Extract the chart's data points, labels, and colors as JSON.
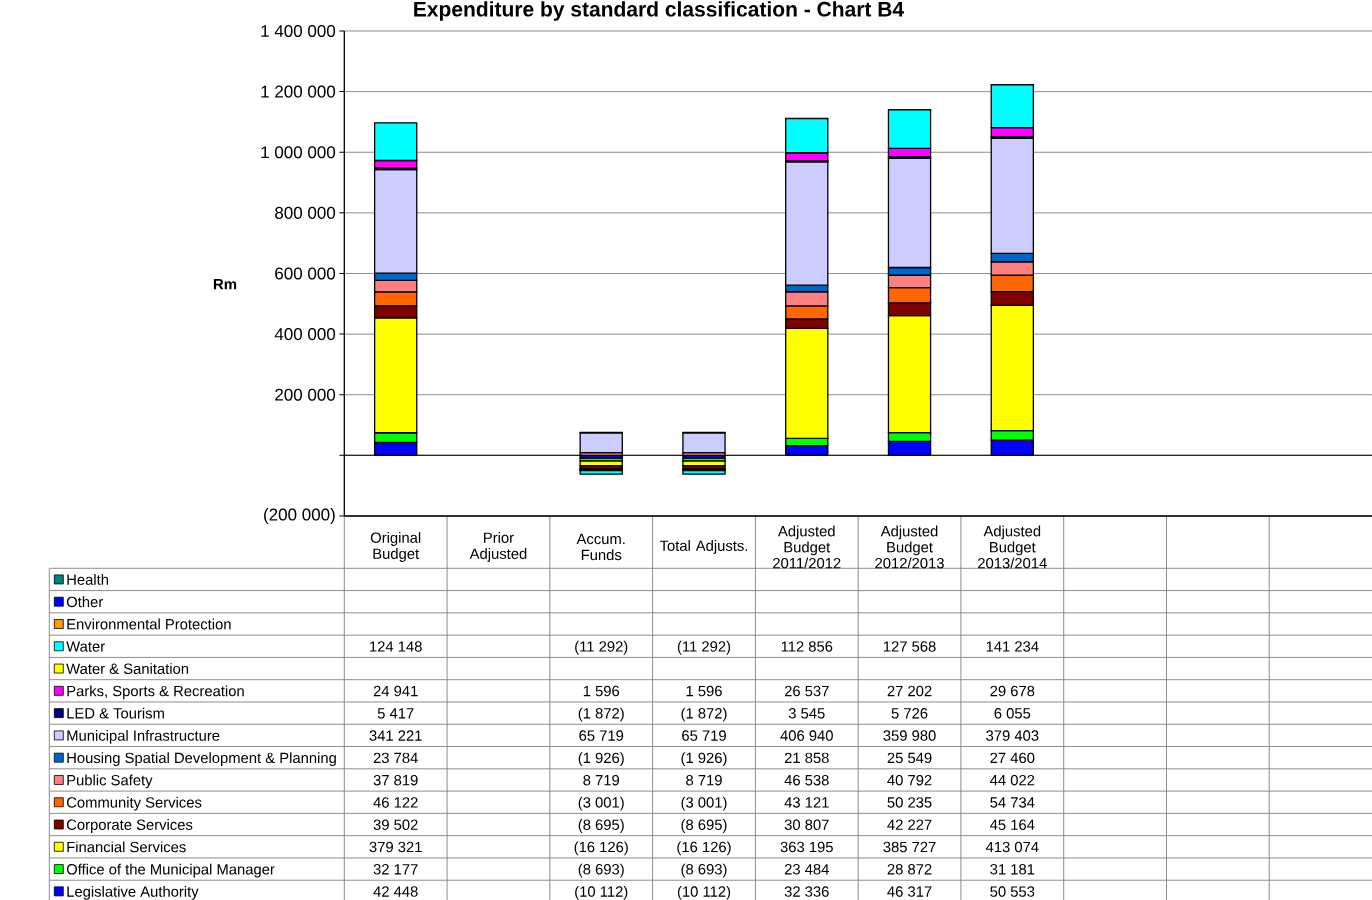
{
  "chart_data": {
    "type": "bar",
    "title": "Expenditure by standard classification - Chart B4",
    "ylabel": "Rm",
    "categories": [
      "Original Budget",
      "Prior Adjusted",
      "Accum. Funds",
      "Total Adjusts.",
      "Adjusted Budget 2011/2012",
      "Adjusted Budget 2012/2013",
      "Adjusted Budget 2013/2014",
      null,
      null,
      null
    ],
    "stacked": true,
    "grid": "y",
    "legend": "bottom left",
    "ylim": [
      -200000,
      1400000
    ],
    "yticks": [
      {
        "value": -200000,
        "label": "(200 000)"
      },
      {
        "value": 0,
        "label": null
      },
      {
        "value": 200000,
        "label": "200 000"
      },
      {
        "value": 400000,
        "label": "400 000"
      },
      {
        "value": 600000,
        "label": "600 000"
      },
      {
        "value": 800000,
        "label": "800 000"
      },
      {
        "value": 1000000,
        "label": "1 000 000"
      },
      {
        "value": 1200000,
        "label": "1 200 000"
      },
      {
        "value": 1400000,
        "label": "1 400 000"
      }
    ],
    "series": [
      {
        "name": "Legislative Authority",
        "color": "#0000ff",
        "values": [
          42448,
          null,
          -10112,
          -10112,
          32336,
          46317,
          50553,
          null,
          null,
          null
        ],
        "value_labels": [
          "42 448",
          null,
          "(10 112)",
          "(10 112)",
          "32 336",
          "46 317",
          "50 553",
          null,
          null,
          null
        ]
      },
      {
        "name": "Office of the Municipal Manager",
        "color": "#00ff00",
        "values": [
          32177,
          null,
          -8693,
          -8693,
          23484,
          28872,
          31181,
          null,
          null,
          null
        ],
        "value_labels": [
          "32 177",
          null,
          "(8 693)",
          "(8 693)",
          "23 484",
          "28 872",
          "31 181",
          null,
          null,
          null
        ]
      },
      {
        "name": "Financial Services",
        "color": "#ffff00",
        "values": [
          379321,
          null,
          -16126,
          -16126,
          363195,
          385727,
          413074,
          null,
          null,
          null
        ],
        "value_labels": [
          "379 321",
          null,
          "(16 126)",
          "(16 126)",
          "363 195",
          "385 727",
          "413 074",
          null,
          null,
          null
        ]
      },
      {
        "name": "Corporate Services",
        "color": "#800000",
        "values": [
          39502,
          null,
          -8695,
          -8695,
          30807,
          42227,
          45164,
          null,
          null,
          null
        ],
        "value_labels": [
          "39 502",
          null,
          "(8 695)",
          "(8 695)",
          "30 807",
          "42 227",
          "45 164",
          null,
          null,
          null
        ]
      },
      {
        "name": "Community Services",
        "color": "#ff6600",
        "values": [
          46122,
          null,
          -3001,
          -3001,
          43121,
          50235,
          54734,
          null,
          null,
          null
        ],
        "value_labels": [
          "46 122",
          null,
          "(3 001)",
          "(3 001)",
          "43 121",
          "50 235",
          "54 734",
          null,
          null,
          null
        ]
      },
      {
        "name": "Public Safety",
        "color": "#ff8080",
        "values": [
          37819,
          null,
          8719,
          8719,
          46538,
          40792,
          44022,
          null,
          null,
          null
        ],
        "value_labels": [
          "37 819",
          null,
          "8 719",
          "8 719",
          "46 538",
          "40 792",
          "44 022",
          null,
          null,
          null
        ]
      },
      {
        "name": "Housing Spatial Development & Planning",
        "color": "#0066cc",
        "values": [
          23784,
          null,
          -1926,
          -1926,
          21858,
          25549,
          27460,
          null,
          null,
          null
        ],
        "value_labels": [
          "23 784",
          null,
          "(1 926)",
          "(1 926)",
          "21 858",
          "25 549",
          "27 460",
          null,
          null,
          null
        ]
      },
      {
        "name": "Municipal Infrastructure",
        "color": "#ccccff",
        "values": [
          341221,
          null,
          65719,
          65719,
          406940,
          359980,
          379403,
          null,
          null,
          null
        ],
        "value_labels": [
          "341 221",
          null,
          "65 719",
          "65 719",
          "406 940",
          "359 980",
          "379 403",
          null,
          null,
          null
        ]
      },
      {
        "name": "LED & Tourism",
        "color": "#000080",
        "values": [
          5417,
          null,
          -1872,
          -1872,
          3545,
          5726,
          6055,
          null,
          null,
          null
        ],
        "value_labels": [
          "5 417",
          null,
          "(1 872)",
          "(1 872)",
          "3 545",
          "5 726",
          "6 055",
          null,
          null,
          null
        ]
      },
      {
        "name": "Parks, Sports & Recreation",
        "color": "#ff00ff",
        "values": [
          24941,
          null,
          1596,
          1596,
          26537,
          27202,
          29678,
          null,
          null,
          null
        ],
        "value_labels": [
          "24 941",
          null,
          "1 596",
          "1 596",
          "26 537",
          "27 202",
          "29 678",
          null,
          null,
          null
        ]
      },
      {
        "name": "Water & Sanitation",
        "color": "#ffff00",
        "values": [
          null,
          null,
          null,
          null,
          null,
          null,
          null,
          null,
          null,
          null
        ]
      },
      {
        "name": "Water",
        "color": "#00ffff",
        "values": [
          124148,
          null,
          -11292,
          -11292,
          112856,
          127568,
          141234,
          null,
          null,
          null
        ],
        "value_labels": [
          "124 148",
          null,
          "(11 292)",
          "(11 292)",
          "112 856",
          "127 568",
          "141 234",
          null,
          null,
          null
        ]
      },
      {
        "name": "Environmental Protection",
        "color": "#ff9900",
        "values": [
          null,
          null,
          null,
          null,
          null,
          null,
          null,
          null,
          null,
          null
        ]
      },
      {
        "name": "Other",
        "color": "#0000ff",
        "values": [
          null,
          null,
          null,
          null,
          null,
          null,
          null,
          null,
          null,
          null
        ]
      },
      {
        "name": "Health",
        "color": "#008080",
        "values": [
          null,
          null,
          null,
          null,
          null,
          null,
          null,
          null,
          null,
          null
        ]
      }
    ]
  }
}
